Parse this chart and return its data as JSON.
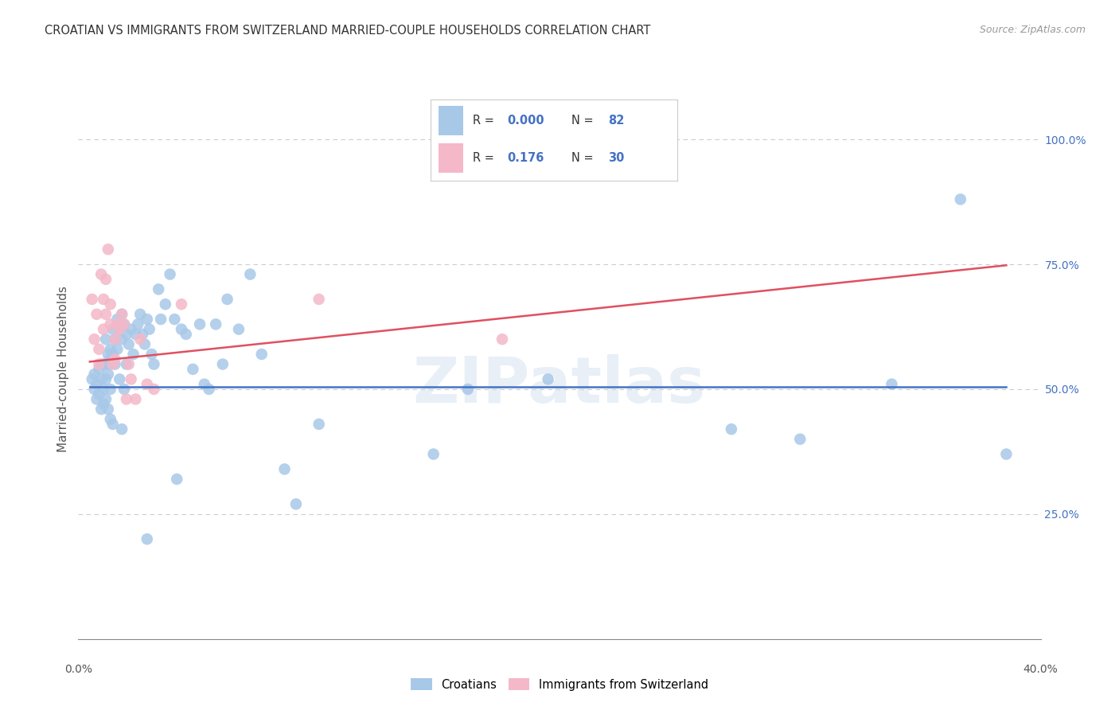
{
  "title": "CROATIAN VS IMMIGRANTS FROM SWITZERLAND MARRIED-COUPLE HOUSEHOLDS CORRELATION CHART",
  "source": "Source: ZipAtlas.com",
  "ylabel": "Married-couple Households",
  "legend_croatians": "Croatians",
  "legend_immigrants": "Immigrants from Switzerland",
  "blue_color": "#a8c8e8",
  "pink_color": "#f4b8c8",
  "blue_line_color": "#4472c4",
  "pink_line_color": "#e05060",
  "watermark": "ZIPatlas",
  "blue_scatter_x": [
    0.001,
    0.002,
    0.002,
    0.003,
    0.003,
    0.004,
    0.004,
    0.005,
    0.005,
    0.005,
    0.006,
    0.006,
    0.006,
    0.007,
    0.007,
    0.007,
    0.008,
    0.008,
    0.008,
    0.008,
    0.009,
    0.009,
    0.009,
    0.009,
    0.01,
    0.01,
    0.01,
    0.011,
    0.011,
    0.012,
    0.012,
    0.013,
    0.013,
    0.014,
    0.014,
    0.014,
    0.015,
    0.015,
    0.016,
    0.016,
    0.017,
    0.018,
    0.019,
    0.02,
    0.021,
    0.022,
    0.023,
    0.024,
    0.025,
    0.026,
    0.027,
    0.028,
    0.03,
    0.031,
    0.033,
    0.035,
    0.037,
    0.04,
    0.042,
    0.045,
    0.048,
    0.05,
    0.052,
    0.055,
    0.058,
    0.06,
    0.065,
    0.07,
    0.075,
    0.085,
    0.09,
    0.1,
    0.15,
    0.165,
    0.2,
    0.28,
    0.31,
    0.35,
    0.38,
    0.4,
    0.038,
    0.025
  ],
  "blue_scatter_y": [
    0.52,
    0.5,
    0.53,
    0.48,
    0.51,
    0.54,
    0.49,
    0.55,
    0.46,
    0.52,
    0.55,
    0.5,
    0.47,
    0.6,
    0.52,
    0.48,
    0.57,
    0.53,
    0.46,
    0.55,
    0.58,
    0.56,
    0.5,
    0.44,
    0.62,
    0.57,
    0.43,
    0.6,
    0.55,
    0.64,
    0.58,
    0.62,
    0.52,
    0.65,
    0.6,
    0.42,
    0.63,
    0.5,
    0.61,
    0.55,
    0.59,
    0.62,
    0.57,
    0.61,
    0.63,
    0.65,
    0.61,
    0.59,
    0.64,
    0.62,
    0.57,
    0.55,
    0.7,
    0.64,
    0.67,
    0.73,
    0.64,
    0.62,
    0.61,
    0.54,
    0.63,
    0.51,
    0.5,
    0.63,
    0.55,
    0.68,
    0.62,
    0.73,
    0.57,
    0.34,
    0.27,
    0.43,
    0.37,
    0.5,
    0.52,
    0.42,
    0.4,
    0.51,
    0.88,
    0.37,
    0.32,
    0.2
  ],
  "pink_scatter_x": [
    0.001,
    0.002,
    0.003,
    0.004,
    0.004,
    0.005,
    0.006,
    0.006,
    0.007,
    0.007,
    0.008,
    0.009,
    0.009,
    0.01,
    0.011,
    0.011,
    0.012,
    0.013,
    0.014,
    0.015,
    0.016,
    0.017,
    0.018,
    0.02,
    0.022,
    0.025,
    0.028,
    0.04,
    0.1,
    0.18
  ],
  "pink_scatter_y": [
    0.68,
    0.6,
    0.65,
    0.55,
    0.58,
    0.73,
    0.62,
    0.68,
    0.65,
    0.72,
    0.78,
    0.63,
    0.67,
    0.55,
    0.56,
    0.6,
    0.63,
    0.62,
    0.65,
    0.63,
    0.48,
    0.55,
    0.52,
    0.48,
    0.6,
    0.51,
    0.5,
    0.67,
    0.68,
    0.6
  ],
  "blue_line_x": [
    0.0,
    0.4
  ],
  "blue_line_y": [
    0.505,
    0.505
  ],
  "pink_line_x": [
    0.0,
    0.4
  ],
  "pink_line_y": [
    0.555,
    0.748
  ],
  "xlim": [
    -0.005,
    0.415
  ],
  "ylim": [
    0.0,
    1.08
  ],
  "yticks_right": [
    1.0,
    0.75,
    0.5,
    0.25
  ],
  "ytick_labels_right": [
    "100.0%",
    "75.0%",
    "50.0%",
    "25.0%"
  ],
  "grid_dashes": [
    4,
    3
  ],
  "grid_color": "#cccccc",
  "xtick_major": [
    0.0,
    0.4
  ],
  "xtick_minor": [
    0.05,
    0.1,
    0.15,
    0.2,
    0.25,
    0.3,
    0.35
  ],
  "xtick_major_labels": [
    "0.0%",
    "40.0%"
  ]
}
